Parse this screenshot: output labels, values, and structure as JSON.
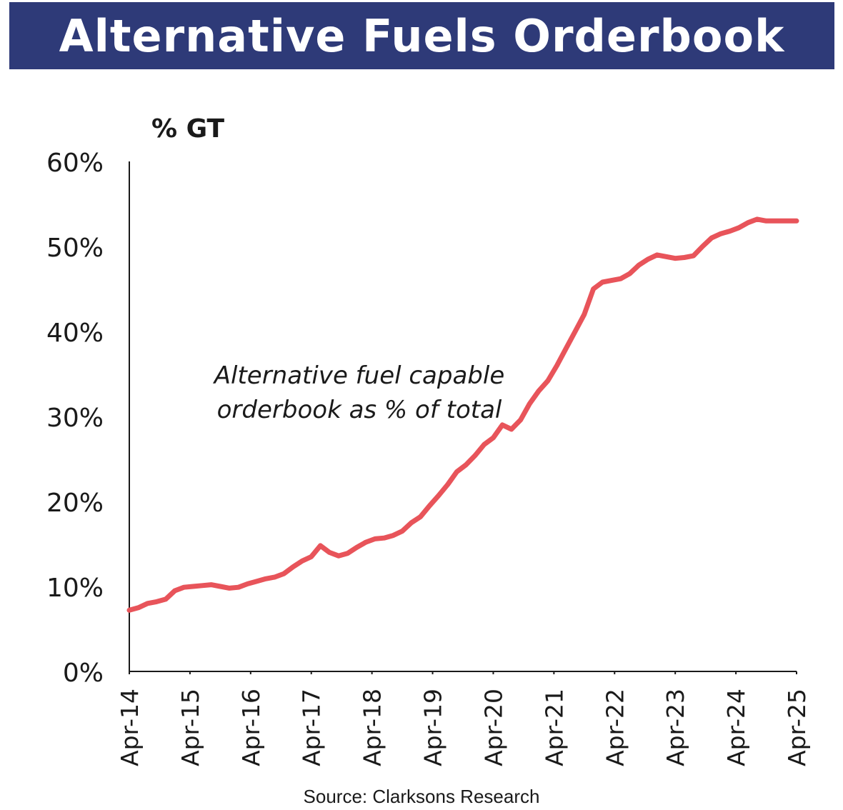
{
  "title": "Alternative Fuels Orderbook",
  "source": "Source: Clarksons Research",
  "chart_data": {
    "type": "line",
    "title": "Alternative Fuels Orderbook",
    "ylabel": "% GT",
    "xlabel": "",
    "ylim": [
      0,
      60
    ],
    "yticks": [
      0,
      10,
      20,
      30,
      40,
      50,
      60
    ],
    "ytick_labels": [
      "0%",
      "10%",
      "20%",
      "30%",
      "40%",
      "50%",
      "60%"
    ],
    "xlim": [
      2014.25,
      2025.25
    ],
    "xtick_labels": [
      "Apr-14",
      "Apr-15",
      "Apr-16",
      "Apr-17",
      "Apr-18",
      "Apr-19",
      "Apr-20",
      "Apr-21",
      "Apr-22",
      "Apr-23",
      "Apr-24",
      "Apr-25"
    ],
    "xtick_positions": [
      2014.25,
      2015.25,
      2016.25,
      2017.25,
      2018.25,
      2019.25,
      2020.25,
      2021.25,
      2022.25,
      2023.25,
      2024.25,
      2025.25
    ],
    "annotation": {
      "line1": "Alternative fuel capable",
      "line2": "orderbook as % of total"
    },
    "line_color": "#e8545a",
    "series": [
      {
        "name": "Alternative fuel capable orderbook as % of total",
        "x": [
          2014.25,
          2014.4,
          2014.55,
          2014.7,
          2014.85,
          2015.0,
          2015.15,
          2015.3,
          2015.45,
          2015.6,
          2015.75,
          2015.9,
          2016.05,
          2016.2,
          2016.35,
          2016.5,
          2016.65,
          2016.8,
          2016.95,
          2017.1,
          2017.25,
          2017.4,
          2017.55,
          2017.7,
          2017.85,
          2018.0,
          2018.15,
          2018.3,
          2018.45,
          2018.6,
          2018.75,
          2018.9,
          2019.05,
          2019.2,
          2019.35,
          2019.5,
          2019.65,
          2019.8,
          2019.95,
          2020.1,
          2020.25,
          2020.4,
          2020.55,
          2020.7,
          2020.85,
          2021.0,
          2021.15,
          2021.3,
          2021.45,
          2021.6,
          2021.75,
          2021.9,
          2022.05,
          2022.2,
          2022.35,
          2022.5,
          2022.65,
          2022.8,
          2022.95,
          2023.1,
          2023.25,
          2023.4,
          2023.55,
          2023.7,
          2023.85,
          2024.0,
          2024.15,
          2024.3,
          2024.45,
          2024.6,
          2024.75,
          2024.9,
          2025.05,
          2025.25
        ],
        "values": [
          7.2,
          7.5,
          8.0,
          8.2,
          8.5,
          9.5,
          9.9,
          10.0,
          10.1,
          10.2,
          10.0,
          9.8,
          9.9,
          10.3,
          10.6,
          10.9,
          11.1,
          11.5,
          12.3,
          13.0,
          13.5,
          14.8,
          14.0,
          13.6,
          13.9,
          14.6,
          15.2,
          15.6,
          15.7,
          16.0,
          16.5,
          17.5,
          18.2,
          19.5,
          20.7,
          22.0,
          23.5,
          24.3,
          25.4,
          26.7,
          27.5,
          29.0,
          28.5,
          29.6,
          31.5,
          33.0,
          34.2,
          36.0,
          38.0,
          40.0,
          42.0,
          45.0,
          45.8,
          46.0,
          46.2,
          46.8,
          47.8,
          48.5,
          49.0,
          48.8,
          48.6,
          48.7,
          48.9,
          50.0,
          51.0,
          51.5,
          51.8,
          52.2,
          52.8,
          53.2,
          53.0,
          53.0,
          53.0,
          53.0
        ]
      }
    ]
  }
}
